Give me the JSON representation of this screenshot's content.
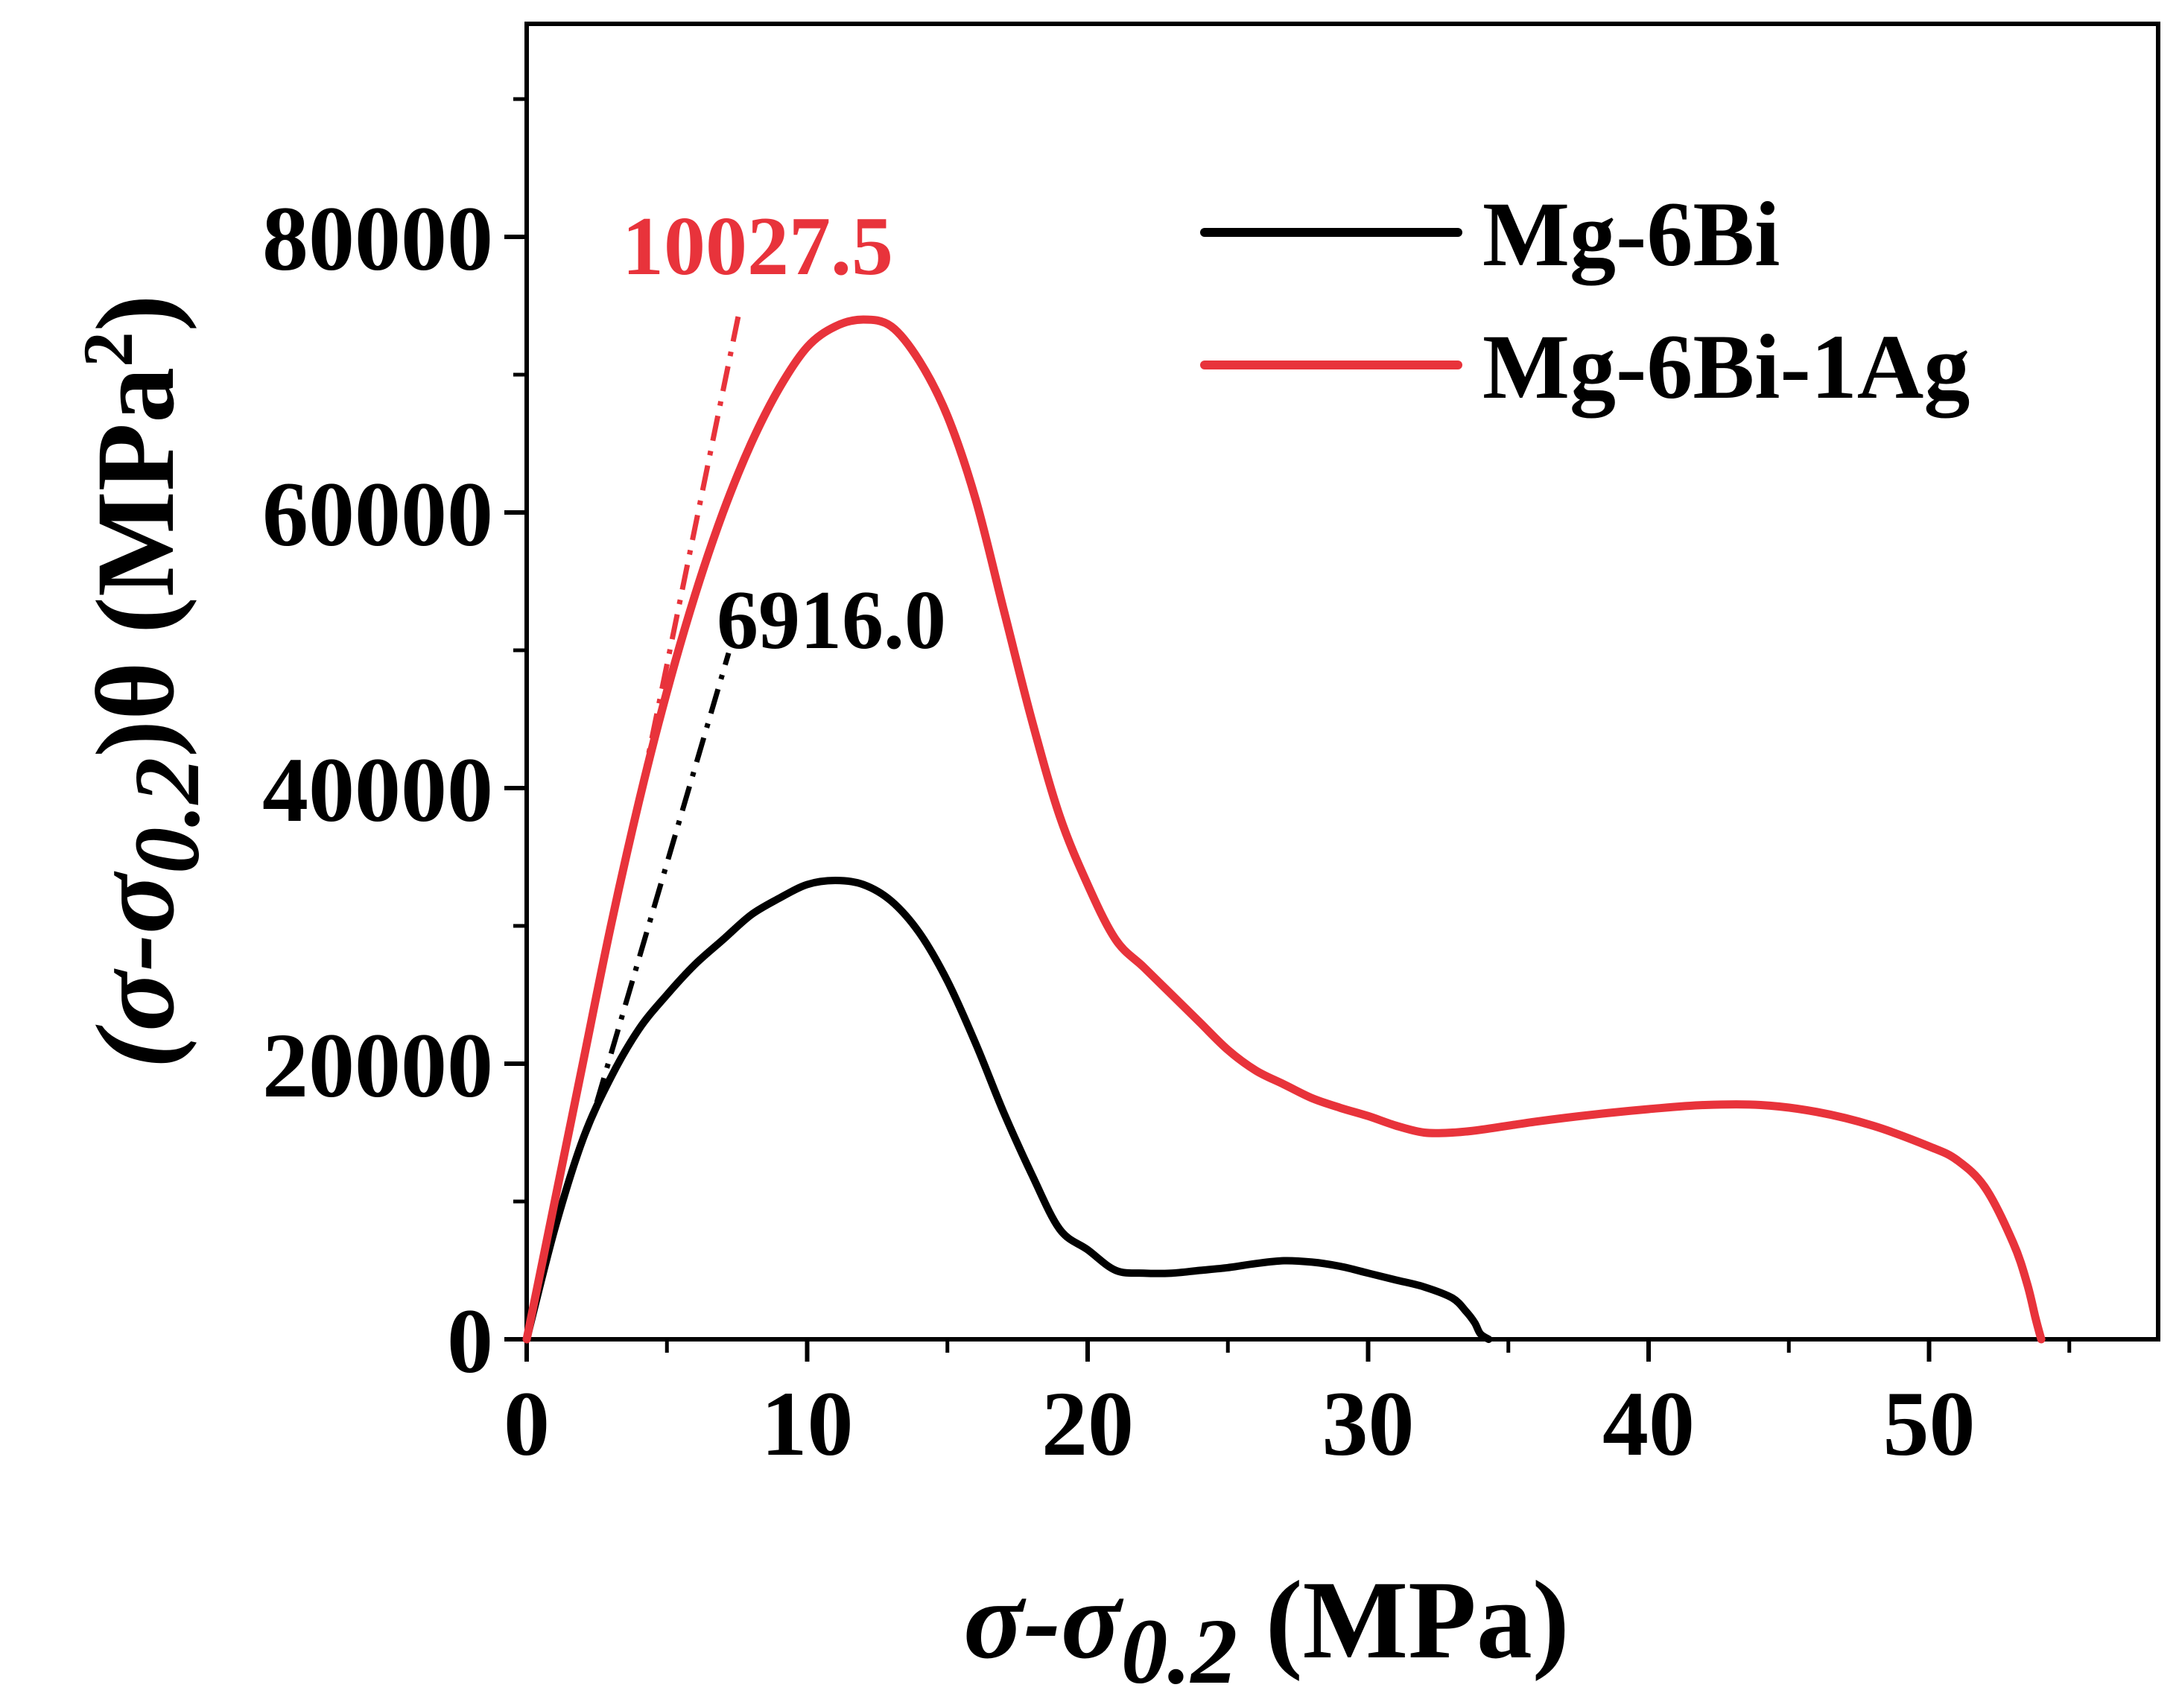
{
  "chart_data": {
    "type": "line",
    "title": "",
    "xlabel": {
      "sym": "σ-σ",
      "sub": "0.2",
      "unit": " (MPa)"
    },
    "ylabel": {
      "sym": "(σ-σ",
      "sub": "0.2",
      "mid": ")θ (MPa",
      "sup": "2",
      "end": ")"
    },
    "xlim": [
      0,
      58
    ],
    "ylim": [
      0,
      95000
    ],
    "xticks": [
      0,
      10,
      20,
      30,
      40,
      50
    ],
    "xtick_labels": [
      "0",
      "10",
      "20",
      "30",
      "40",
      "50"
    ],
    "yticks": [
      0,
      20000,
      40000,
      60000,
      80000
    ],
    "ytick_labels": [
      "0",
      "20000",
      "40000",
      "60000",
      "80000"
    ],
    "legend_position": "top-right",
    "series": [
      {
        "name": "Mg-6Bi",
        "color": "#000000",
        "x": [
          0,
          1,
          2,
          3,
          4,
          5,
          6,
          7,
          8,
          9,
          10,
          11,
          12,
          13,
          14,
          15,
          16,
          17,
          18,
          19,
          20,
          21,
          22,
          23,
          24,
          25,
          26,
          27,
          28,
          29,
          30,
          31,
          32,
          33,
          33.5,
          33.8,
          34.0,
          34.3
        ],
        "y": [
          0,
          8000,
          14500,
          19000,
          22500,
          25000,
          27200,
          29000,
          30800,
          32000,
          33000,
          33300,
          33000,
          31800,
          29500,
          26000,
          21500,
          16500,
          12000,
          8000,
          6500,
          5000,
          4800,
          4800,
          5000,
          5200,
          5500,
          5700,
          5600,
          5300,
          4800,
          4300,
          3800,
          3000,
          2000,
          1200,
          400,
          0
        ]
      },
      {
        "name": "Mg-6Bi-1Ag",
        "color": "#e8333b",
        "x": [
          0,
          1,
          2,
          3,
          4,
          5,
          6,
          7,
          8,
          9,
          10,
          11,
          12,
          13,
          14,
          15,
          16,
          17,
          18,
          19,
          20,
          21,
          22,
          23,
          24,
          25,
          26,
          27,
          28,
          29,
          30,
          31,
          32,
          33,
          34,
          36,
          38,
          40,
          42,
          44,
          46,
          48,
          50,
          51,
          52,
          53,
          53.5,
          53.8,
          54.0
        ],
        "y": [
          0,
          10000,
          20000,
          30000,
          39000,
          47000,
          54000,
          60000,
          65000,
          69000,
          72000,
          73500,
          74000,
          73500,
          71000,
          67000,
          61000,
          53000,
          45000,
          38000,
          33000,
          29000,
          27000,
          25000,
          23000,
          21000,
          19500,
          18500,
          17500,
          16800,
          16200,
          15500,
          15000,
          15000,
          15200,
          15800,
          16300,
          16700,
          17000,
          17000,
          16500,
          15500,
          14000,
          13000,
          11000,
          7000,
          4000,
          1500,
          0
        ]
      }
    ],
    "fit_lines": [
      {
        "label": "6916.0",
        "color": "#000000",
        "x": [
          2.5,
          7.2
        ],
        "y": [
          17200,
          49800
        ]
      },
      {
        "label": "10027.5",
        "color": "#e8333b",
        "x": [
          4.1,
          7.6
        ],
        "y": [
          40000,
          74800
        ]
      }
    ]
  }
}
